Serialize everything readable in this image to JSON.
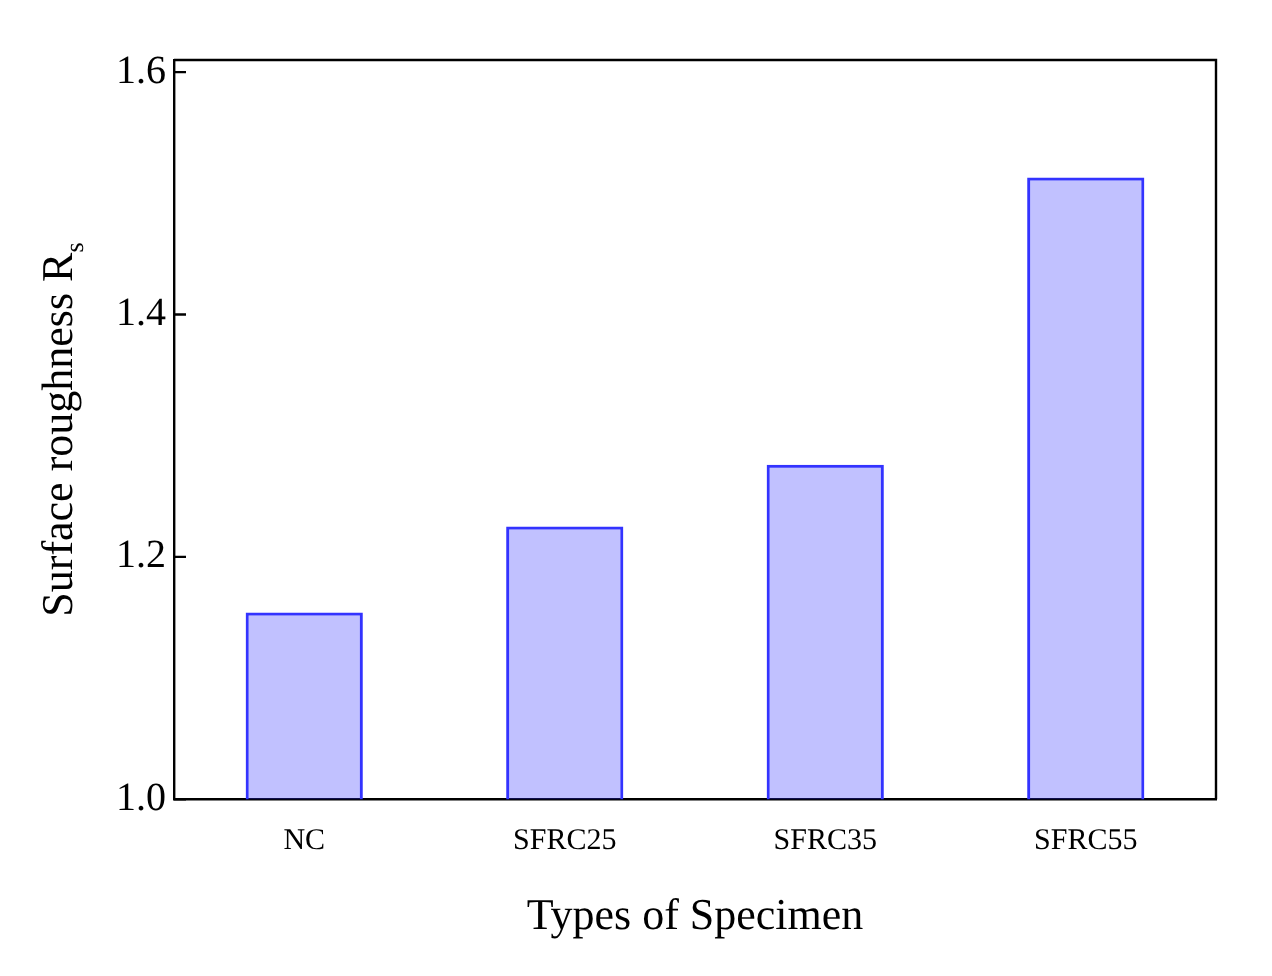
{
  "chart_data": {
    "type": "bar",
    "xlabel": "Types of Specimen",
    "ylabel": "Surface roughness R$_{s}$",
    "categories": [
      "NC",
      "SFRC25",
      "SFRC35",
      "SFRC55"
    ],
    "values": [
      1.154,
      1.225,
      1.276,
      1.513
    ],
    "color": "#3333ff",
    "ylim": [
      1,
      1.61
    ],
    "yticks": [
      {
        "value": 1,
        "label": "1.0"
      },
      {
        "value": 1.2,
        "label": "1.2"
      },
      {
        "value": 1.4,
        "label": "1.4"
      },
      {
        "value": 1.6,
        "label": "1.6"
      }
    ],
    "grid": false,
    "legend": false
  }
}
